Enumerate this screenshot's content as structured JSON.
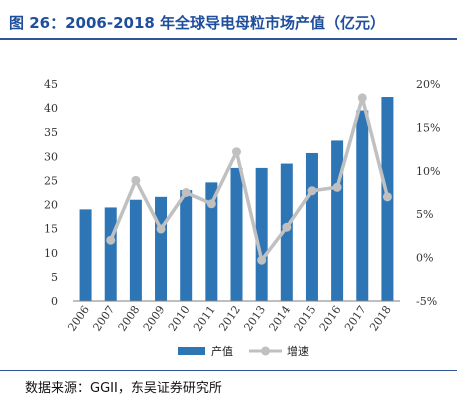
{
  "title": "图 26：2006-2018 年全球导电母粒市场产值（亿元）",
  "source": "数据来源：GGII，东吴证券研究所",
  "chart_data": {
    "type": "bar",
    "title": "图 26：2006-2018 年全球导电母粒市场产值（亿元）",
    "categories": [
      "2006",
      "2007",
      "2008",
      "2009",
      "2010",
      "2011",
      "2012",
      "2013",
      "2014",
      "2015",
      "2016",
      "2017",
      "2018"
    ],
    "series": [
      {
        "name": "产值",
        "type": "bar",
        "axis": "left",
        "color": "#2e75b6",
        "values": [
          19,
          19.4,
          21,
          21.6,
          23,
          24.6,
          27.6,
          27.6,
          28.5,
          30.7,
          33.3,
          39.5,
          42.3
        ]
      },
      {
        "name": "增速",
        "type": "line",
        "axis": "right",
        "color": "#c0c0c0",
        "values": [
          null,
          2.0,
          8.9,
          3.3,
          7.5,
          6.2,
          12.2,
          -0.3,
          3.5,
          7.7,
          8.1,
          18.4,
          7.0
        ]
      }
    ],
    "y_left": {
      "min": 0,
      "max": 45,
      "ticks": [
        "0",
        "5",
        "10",
        "15",
        "20",
        "25",
        "30",
        "35",
        "40",
        "45"
      ]
    },
    "y_right": {
      "min": -5,
      "max": 20,
      "ticks": [
        "-5%",
        "0%",
        "5%",
        "10%",
        "15%",
        "20%"
      ]
    },
    "legend": "bottom-center",
    "grid": false
  }
}
